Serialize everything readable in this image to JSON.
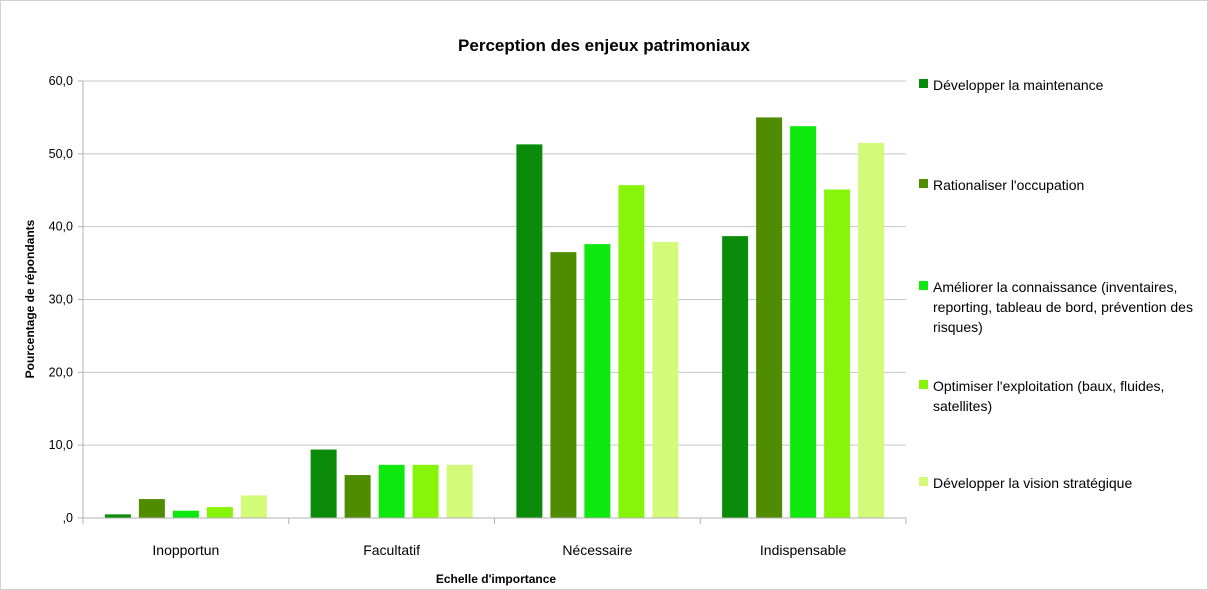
{
  "chart_data": {
    "type": "bar",
    "title": "Perception des enjeux patrimoniaux",
    "xlabel": "Echelle d'importance",
    "ylabel": "Pourcentage de répondants",
    "ylim": [
      0,
      60
    ],
    "yticks": [
      ",0",
      "10,0",
      "20,0",
      "30,0",
      "40,0",
      "50,0",
      "60,0"
    ],
    "grid": true,
    "legend_position": "right",
    "categories": [
      "Inopportun",
      "Facultatif",
      "Nécessaire",
      "Indispensable"
    ],
    "series": [
      {
        "name": "Développer la maintenance",
        "color": "#0a8c0a",
        "values": [
          0.5,
          9.4,
          51.3,
          38.7
        ]
      },
      {
        "name": "Rationaliser l'occupation",
        "color": "#4f8c00",
        "values": [
          2.6,
          5.9,
          36.5,
          55.0
        ]
      },
      {
        "name": "Améliorer la connaissance (inventaires, reporting, tableau de bord, prévention des risques)",
        "color": "#0ee80e",
        "values": [
          1.0,
          7.3,
          37.6,
          53.8
        ]
      },
      {
        "name": "Optimiser l'exploitation (baux, fluides, satellites)",
        "color": "#86f50a",
        "values": [
          1.5,
          7.3,
          45.7,
          45.1
        ]
      },
      {
        "name": "Développer la vision stratégique",
        "color": "#d4fa7a",
        "values": [
          3.1,
          7.3,
          37.9,
          51.5
        ]
      }
    ]
  }
}
